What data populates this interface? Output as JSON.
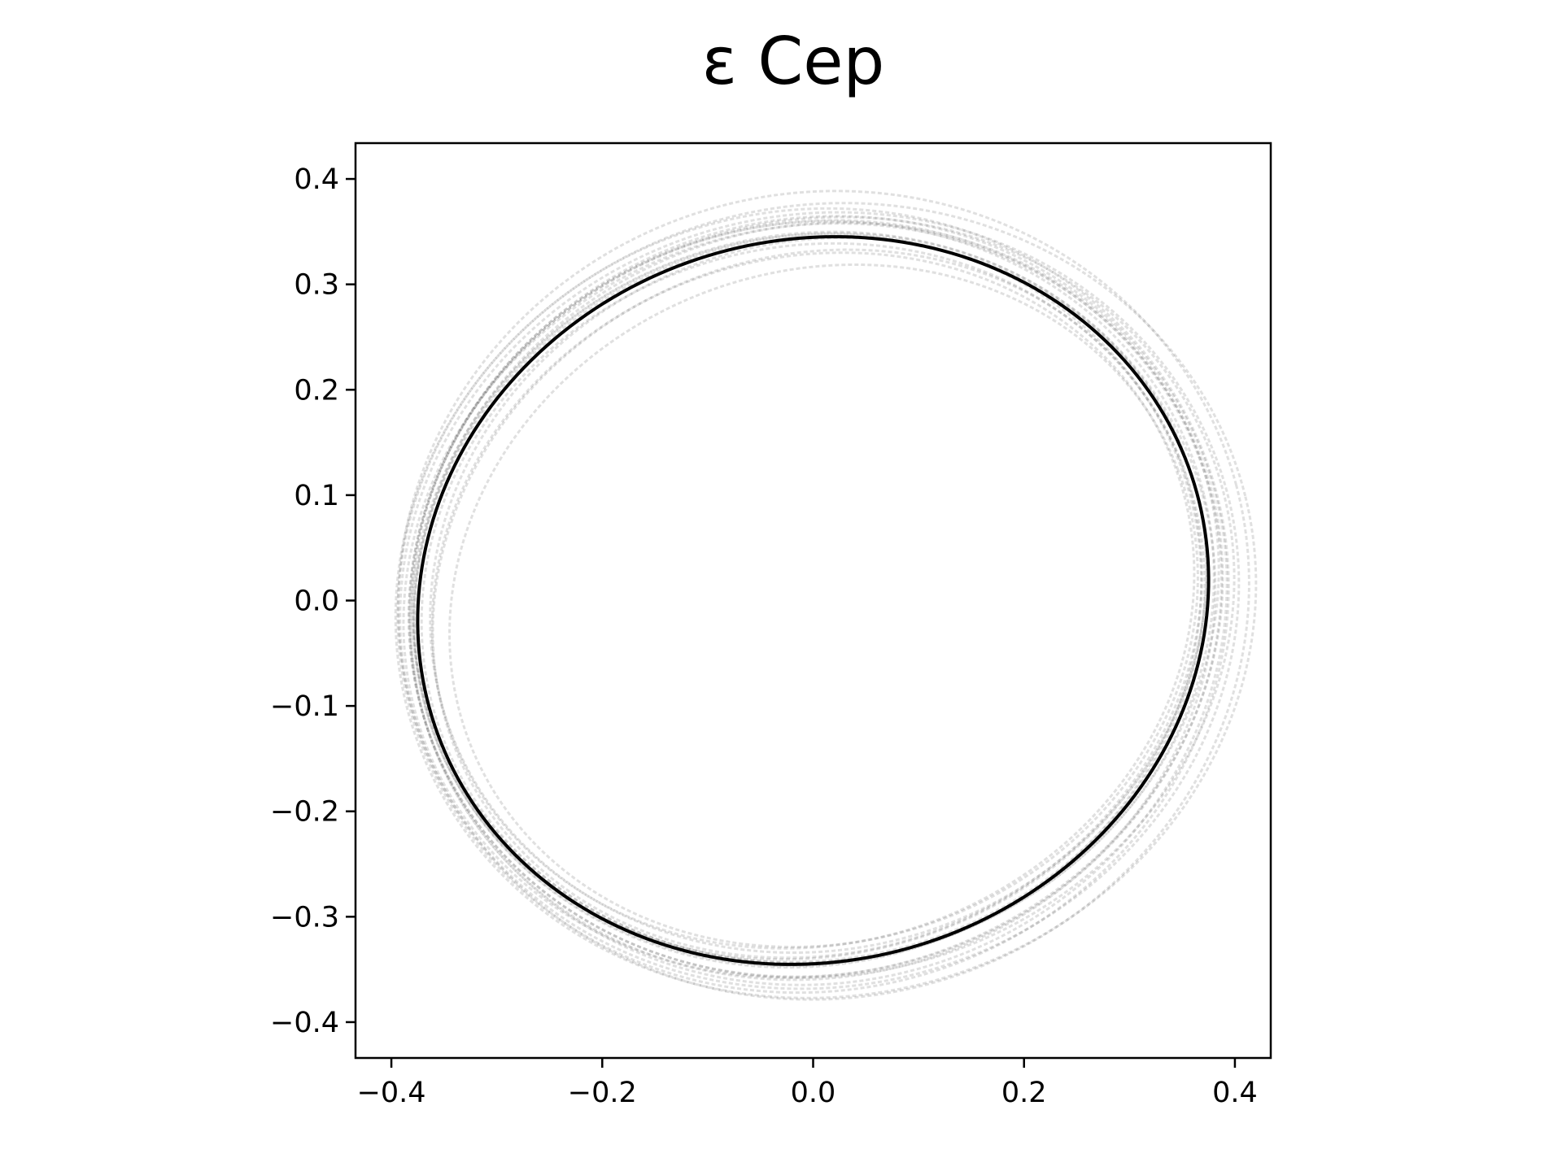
{
  "chart_data": {
    "type": "line",
    "title": "ε Cep",
    "xlabel": "",
    "ylabel": "",
    "xlim": [
      -0.434,
      0.434
    ],
    "ylim": [
      -0.434,
      0.434
    ],
    "xticks": [
      -0.4,
      -0.2,
      0.0,
      0.2,
      0.4
    ],
    "xtick_labels": [
      "−0.4",
      "−0.2",
      "0.0",
      "0.2",
      "0.4"
    ],
    "yticks": [
      -0.4,
      -0.3,
      -0.2,
      -0.1,
      0.0,
      0.1,
      0.2,
      0.3,
      0.4
    ],
    "ytick_labels": [
      "−0.4",
      "−0.3",
      "−0.2",
      "−0.1",
      "0.0",
      "0.1",
      "0.2",
      "0.3",
      "0.4"
    ],
    "grid": false,
    "main_orbit": {
      "color": "#000000",
      "center": [
        0.0,
        0.0
      ],
      "semi_axes": [
        0.378,
        0.342
      ],
      "rotation_deg": 17
    },
    "sample_orbits": {
      "color": "#000000",
      "opacity": 0.12,
      "style": "dotted",
      "orbits": [
        {
          "center": [
            0.0,
            0.0
          ],
          "semi_axes": [
            0.396,
            0.37
          ],
          "rotation_deg": 16
        },
        {
          "center": [
            0.01,
            0.005
          ],
          "semi_axes": [
            0.405,
            0.382
          ],
          "rotation_deg": 15
        },
        {
          "center": [
            0.005,
            0.0
          ],
          "semi_axes": [
            0.39,
            0.362
          ],
          "rotation_deg": 18
        },
        {
          "center": [
            0.0,
            -0.005
          ],
          "semi_axes": [
            0.384,
            0.352
          ],
          "rotation_deg": 17
        },
        {
          "center": [
            0.005,
            0.005
          ],
          "semi_axes": [
            0.372,
            0.335
          ],
          "rotation_deg": 19
        },
        {
          "center": [
            0.0,
            0.0
          ],
          "semi_axes": [
            0.366,
            0.325
          ],
          "rotation_deg": 20
        },
        {
          "center": [
            0.01,
            -0.005
          ],
          "semi_axes": [
            0.36,
            0.318
          ],
          "rotation_deg": 21
        },
        {
          "center": [
            0.0,
            0.008
          ],
          "semi_axes": [
            0.382,
            0.35
          ],
          "rotation_deg": 14
        },
        {
          "center": [
            -0.005,
            0.0
          ],
          "semi_axes": [
            0.376,
            0.345
          ],
          "rotation_deg": 18
        },
        {
          "center": [
            0.008,
            0.003
          ],
          "semi_axes": [
            0.394,
            0.358
          ],
          "rotation_deg": 16
        },
        {
          "center": [
            0.004,
            -0.003
          ],
          "semi_axes": [
            0.37,
            0.33
          ],
          "rotation_deg": 22
        },
        {
          "center": [
            0.002,
            0.002
          ],
          "semi_axes": [
            0.388,
            0.356
          ],
          "rotation_deg": 17
        },
        {
          "center": [
            0.006,
            0.0
          ],
          "semi_axes": [
            0.4,
            0.366
          ],
          "rotation_deg": 15
        },
        {
          "center": [
            -0.003,
            0.004
          ],
          "semi_axes": [
            0.38,
            0.34
          ],
          "rotation_deg": 19
        },
        {
          "center": [
            0.0,
            -0.002
          ],
          "semi_axes": [
            0.374,
            0.338
          ],
          "rotation_deg": 16
        },
        {
          "center": [
            0.012,
            0.0
          ],
          "semi_axes": [
            0.41,
            0.375
          ],
          "rotation_deg": 14
        },
        {
          "center": [
            0.003,
            0.006
          ],
          "semi_axes": [
            0.386,
            0.348
          ],
          "rotation_deg": 20
        },
        {
          "center": [
            0.0,
            0.0
          ],
          "semi_axes": [
            0.392,
            0.354
          ],
          "rotation_deg": 18
        }
      ]
    }
  }
}
